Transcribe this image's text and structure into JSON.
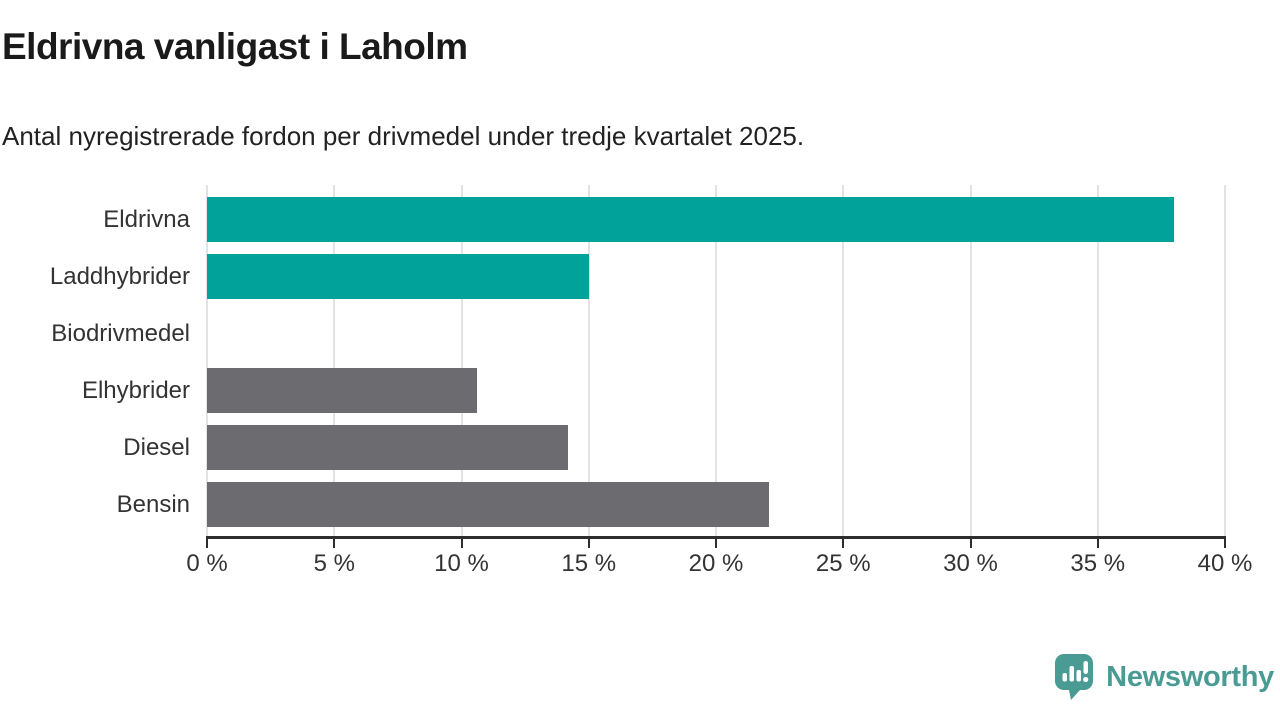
{
  "header": {
    "title": "Eldrivna vanligast i Laholm",
    "subtitle": "Antal nyregistrerade fordon per drivmedel under tredje kvartalet 2025."
  },
  "chart_data": {
    "type": "bar",
    "orientation": "horizontal",
    "title": "Eldrivna vanligast i Laholm",
    "subtitle": "Antal nyregistrerade fordon per drivmedel under tredje kvartalet 2025.",
    "categories": [
      "Eldrivna",
      "Laddhybrider",
      "Biodrivmedel",
      "Elhybrider",
      "Diesel",
      "Bensin"
    ],
    "values": [
      38.0,
      15.0,
      0,
      10.6,
      14.2,
      22.1
    ],
    "unit": "%",
    "xlim": [
      0,
      40
    ],
    "x_ticks": [
      0,
      5,
      10,
      15,
      20,
      25,
      30,
      35,
      40
    ],
    "x_tick_labels": [
      "0 %",
      "5 %",
      "10 %",
      "15 %",
      "20 %",
      "25 %",
      "30 %",
      "35 %",
      "40 %"
    ],
    "bar_colors": [
      "#00a299",
      "#00a299",
      "#6b6b70",
      "#6b6b70",
      "#6b6b70",
      "#6b6b70"
    ],
    "grid": true,
    "legend": false
  },
  "colors": {
    "teal": "#00a299",
    "gray": "#6b6b70",
    "gridline": "#e3e3e3",
    "axis": "#2e2e2e",
    "tick_text": "#333333",
    "logo_teal": "#4a9b94"
  },
  "footer": {
    "brand": "Newsworthy"
  }
}
